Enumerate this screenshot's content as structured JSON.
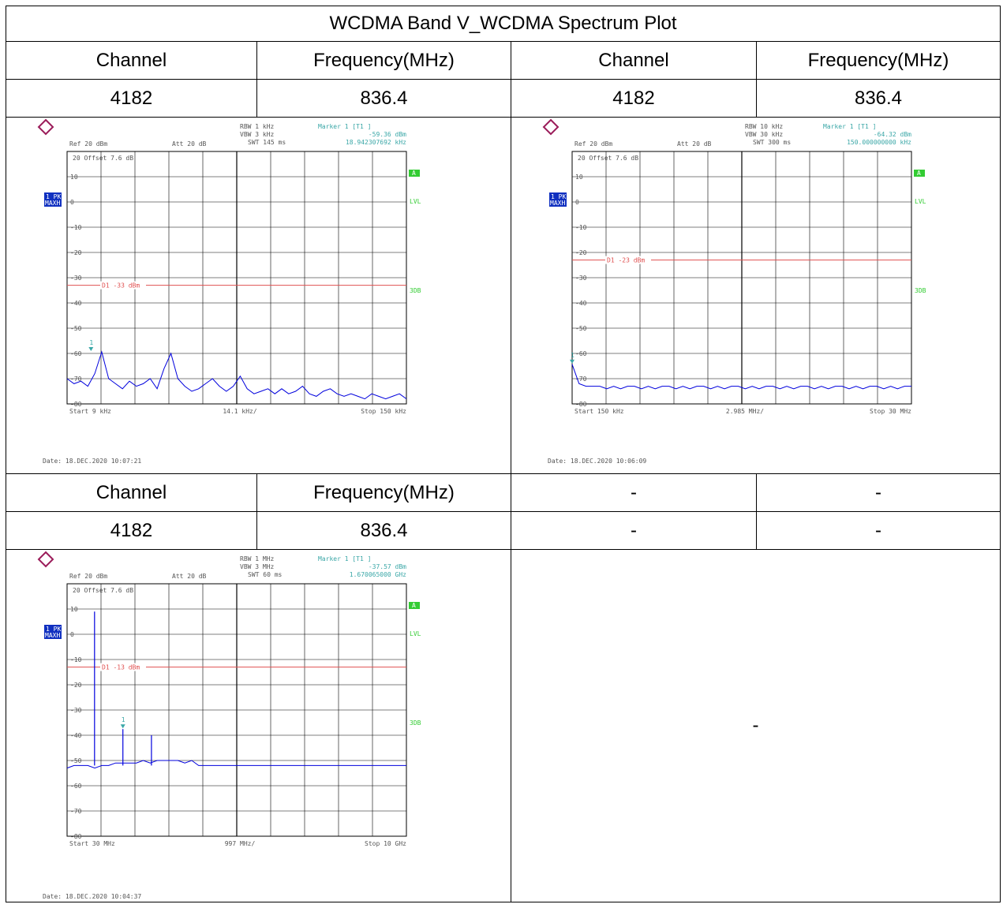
{
  "title": "WCDMA Band V_WCDMA Spectrum Plot",
  "headers": {
    "channel": "Channel",
    "frequency": "Frequency(MHz)"
  },
  "rows": {
    "row1": {
      "ch1": "4182",
      "f1": "836.4",
      "ch2": "4182",
      "f2": "836.4"
    },
    "row2": {
      "ch1": "4182",
      "f1": "836.4",
      "ch2": "-",
      "f2": "-",
      "empty_plot": "-"
    }
  },
  "colors": {
    "trace": "#0000dd",
    "limit": "#e05050",
    "grid": "#000000",
    "text": "#555555",
    "marker": "#3aa7a7",
    "green": "#33cc33"
  },
  "plots": [
    {
      "settings": {
        "rbw": "RBW 1 kHz",
        "vbw": "VBW 3 kHz",
        "swt": "SWT 145 ms",
        "ref": "Ref  20 dBm",
        "att": "Att  20 dB"
      },
      "marker": {
        "label": "Marker 1 [T1 ]",
        "level": "-59.36 dBm",
        "freq": "18.942307692 kHz",
        "num": "1"
      },
      "offset": "20 Offset  7.6 dB",
      "mode": "1 PK",
      "maxh": "MAXH",
      "side_a": "A",
      "side_lvl": "LVL",
      "side_3db": "3DB",
      "y_ticks": [
        "10",
        "0",
        "-10",
        "-20",
        "-30",
        "-40",
        "-50",
        "-60",
        "-70",
        "-80"
      ],
      "limit_label": "D1 -33 dBm",
      "start": "Start  9 kHz",
      "span": "14.1 kHz/",
      "stop": "Stop  150 kHz",
      "date": "Date: 18.DEC.2020  10:07:21"
    },
    {
      "settings": {
        "rbw": "RBW 10 kHz",
        "vbw": "VBW 30 kHz",
        "swt": "SWT 300 ms",
        "ref": "Ref  20 dBm",
        "att": "Att  20 dB"
      },
      "marker": {
        "label": "Marker 1 [T1 ]",
        "level": "-64.32 dBm",
        "freq": "150.000000000 kHz",
        "num": "1"
      },
      "offset": "20 Offset  7.6 dB",
      "mode": "1 PK",
      "maxh": "MAXH",
      "side_a": "A",
      "side_lvl": "LVL",
      "side_3db": "3DB",
      "y_ticks": [
        "10",
        "0",
        "-10",
        "-20",
        "-30",
        "-40",
        "-50",
        "-60",
        "-70",
        "-80"
      ],
      "limit_label": "D1 -23 dBm",
      "start": "Start  150 kHz",
      "span": "2.985 MHz/",
      "stop": "Stop  30 MHz",
      "date": "Date: 18.DEC.2020  10:06:09"
    },
    {
      "settings": {
        "rbw": "RBW 1 MHz",
        "vbw": "VBW 3 MHz",
        "swt": "SWT 60 ms",
        "ref": "Ref  20 dBm",
        "att": "Att  20 dB"
      },
      "marker": {
        "label": "Marker 1 [T1 ]",
        "level": "-37.57 dBm",
        "freq": "1.670065000 GHz",
        "num": "1"
      },
      "offset": "20 Offset  7.6 dB",
      "mode": "1 PK",
      "maxh": "MAXH",
      "side_a": "A",
      "side_lvl": "LVL",
      "side_3db": "3DB",
      "y_ticks": [
        "10",
        "0",
        "-10",
        "-20",
        "-30",
        "-40",
        "-50",
        "-60",
        "-70",
        "-80"
      ],
      "limit_label": "D1 -13 dBm",
      "start": "Start  30 MHz",
      "span": "997 MHz/",
      "stop": "Stop  10 GHz",
      "date": "Date: 18.DEC.2020  10:04:37"
    }
  ],
  "chart_data": [
    {
      "type": "line",
      "x_range_khz": [
        9,
        150
      ],
      "ylim": [
        -80,
        20
      ],
      "limit_dbm": -33,
      "marker_x_khz": 18.94,
      "marker_dbm": -59.36,
      "series": [
        {
          "values_dbm": [
            -70,
            -72,
            -71,
            -73,
            -68,
            -59.4,
            -70,
            -72,
            -74,
            -71,
            -73,
            -72,
            -70,
            -74,
            -66,
            -60,
            -70,
            -73,
            -75,
            -74,
            -72,
            -70,
            -73,
            -75,
            -73,
            -69,
            -74,
            -76,
            -75,
            -74,
            -76,
            -74,
            -76,
            -75,
            -73,
            -76,
            -77,
            -75,
            -74,
            -76,
            -77,
            -76,
            -77,
            -78,
            -76,
            -77,
            -78,
            -77,
            -76,
            -78
          ]
        }
      ]
    },
    {
      "type": "line",
      "x_range_mhz": [
        0.15,
        30
      ],
      "ylim": [
        -80,
        20
      ],
      "limit_dbm": -23,
      "marker_x_mhz": 0.15,
      "marker_dbm": -64.32,
      "series": [
        {
          "values_dbm": [
            -64.3,
            -72,
            -73,
            -73,
            -73,
            -74,
            -73,
            -74,
            -73,
            -73,
            -74,
            -73,
            -74,
            -73,
            -73,
            -74,
            -73,
            -74,
            -73,
            -73,
            -74,
            -73,
            -74,
            -73,
            -73,
            -74,
            -73,
            -74,
            -73,
            -73,
            -74,
            -73,
            -74,
            -73,
            -73,
            -74,
            -73,
            -74,
            -73,
            -73,
            -74,
            -73,
            -74,
            -73,
            -73,
            -74,
            -73,
            -74,
            -73,
            -73
          ]
        }
      ]
    },
    {
      "type": "line",
      "x_range_mhz": [
        30,
        10000
      ],
      "ylim": [
        -80,
        20
      ],
      "limit_dbm": -13,
      "marker_x_mhz": 1670.065,
      "marker_dbm": -37.57,
      "series": [
        {
          "values_dbm": [
            -53,
            -52,
            -52,
            -52,
            -53,
            -52,
            -52,
            -51,
            -51,
            -51,
            -51,
            -50,
            -51,
            -50,
            -50,
            -50,
            -50,
            -51,
            -50,
            -52,
            -52,
            -52,
            -52,
            -52,
            -52,
            -52,
            -52,
            -52,
            -52,
            -52,
            -52,
            -52,
            -52,
            -52,
            -52,
            -52,
            -52,
            -52,
            -52,
            -52,
            -52,
            -52,
            -52,
            -52,
            -52,
            -52,
            -52,
            -52,
            -52,
            -52
          ]
        }
      ],
      "spurs": [
        {
          "x_mhz": 837,
          "dbm": 9
        },
        {
          "x_mhz": 1670.065,
          "dbm": -37.57
        },
        {
          "x_mhz": 2509,
          "dbm": -40
        }
      ]
    }
  ]
}
